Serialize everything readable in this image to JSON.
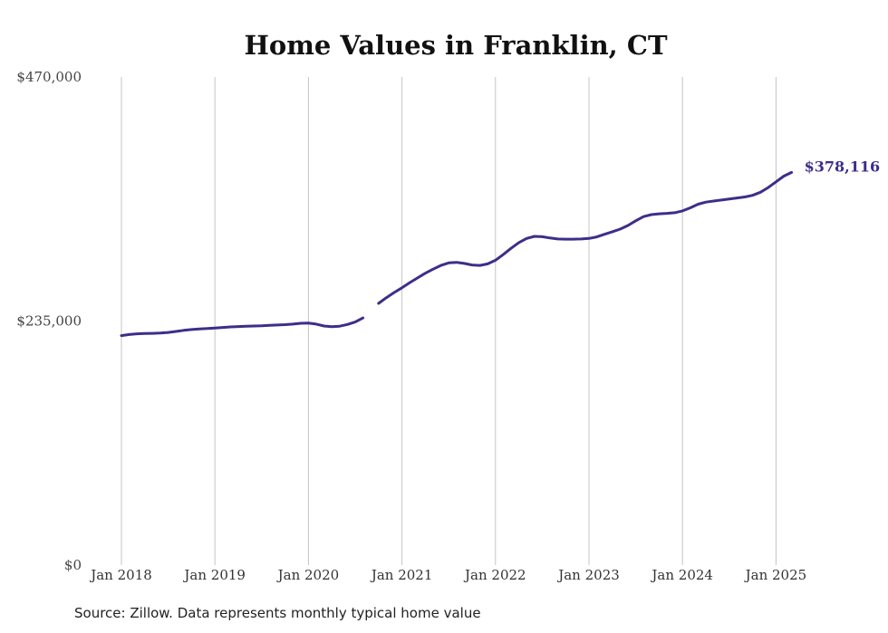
{
  "chart_data": {
    "type": "line",
    "title": "Home Values in Franklin, CT",
    "xlabel": "",
    "ylabel": "",
    "ylim": [
      0,
      470000
    ],
    "y_ticks": [
      "$0",
      "$235,000",
      "$470,000"
    ],
    "y_tick_values": [
      0,
      235000,
      470000
    ],
    "x_ticks": [
      "Jan 2018",
      "Jan 2019",
      "Jan 2020",
      "Jan 2021",
      "Jan 2022",
      "Jan 2023",
      "Jan 2024",
      "Jan 2025"
    ],
    "x_tick_dates": [
      "2018-01",
      "2019-01",
      "2020-01",
      "2021-01",
      "2022-01",
      "2023-01",
      "2024-01",
      "2025-01"
    ],
    "x_range": [
      "2018-01",
      "2025-03"
    ],
    "grid": "vertical",
    "color": "#3b2f8a",
    "end_label": "$378,116",
    "series": [
      {
        "segments": [
          [
            [
              "2018-01",
              221000
            ],
            [
              "2018-02",
              222000
            ],
            [
              "2018-03",
              222700
            ],
            [
              "2018-04",
              223000
            ],
            [
              "2018-05",
              223100
            ],
            [
              "2018-06",
              223400
            ],
            [
              "2018-07",
              224000
            ],
            [
              "2018-08",
              225000
            ],
            [
              "2018-09",
              226000
            ],
            [
              "2018-10",
              226800
            ],
            [
              "2018-11",
              227400
            ],
            [
              "2018-12",
              227800
            ],
            [
              "2019-01",
              228300
            ],
            [
              "2019-02",
              228800
            ],
            [
              "2019-03",
              229300
            ],
            [
              "2019-04",
              229700
            ],
            [
              "2019-05",
              230000
            ],
            [
              "2019-06",
              230200
            ],
            [
              "2019-07",
              230500
            ],
            [
              "2019-08",
              230900
            ],
            [
              "2019-09",
              231200
            ],
            [
              "2019-10",
              231500
            ],
            [
              "2019-11",
              232000
            ],
            [
              "2019-12",
              232800
            ],
            [
              "2020-01",
              233000
            ],
            [
              "2020-02",
              232000
            ],
            [
              "2020-03",
              230200
            ],
            [
              "2020-04",
              229500
            ],
            [
              "2020-05",
              230000
            ],
            [
              "2020-06",
              231700
            ],
            [
              "2020-07",
              234000
            ],
            [
              "2020-08",
              238000
            ]
          ],
          [
            [
              "2020-10",
              252000
            ],
            [
              "2020-11",
              257500
            ],
            [
              "2020-12",
              262500
            ],
            [
              "2021-01",
              267000
            ],
            [
              "2021-02",
              272000
            ],
            [
              "2021-03",
              276500
            ],
            [
              "2021-04",
              281000
            ],
            [
              "2021-05",
              285000
            ],
            [
              "2021-06",
              288500
            ],
            [
              "2021-07",
              291000
            ],
            [
              "2021-08",
              291500
            ],
            [
              "2021-09",
              290500
            ],
            [
              "2021-10",
              289000
            ],
            [
              "2021-11",
              288500
            ],
            [
              "2021-12",
              290000
            ],
            [
              "2022-01",
              293500
            ],
            [
              "2022-02",
              299000
            ],
            [
              "2022-03",
              305000
            ],
            [
              "2022-04",
              310500
            ],
            [
              "2022-05",
              314500
            ],
            [
              "2022-06",
              316500
            ],
            [
              "2022-07",
              316200
            ],
            [
              "2022-08",
              315000
            ],
            [
              "2022-09",
              314000
            ],
            [
              "2022-10",
              313800
            ],
            [
              "2022-11",
              313800
            ],
            [
              "2022-12",
              314000
            ],
            [
              "2023-01",
              314500
            ],
            [
              "2023-02",
              316000
            ],
            [
              "2023-03",
              318500
            ],
            [
              "2023-04",
              321000
            ],
            [
              "2023-05",
              323500
            ],
            [
              "2023-06",
              327000
            ],
            [
              "2023-07",
              331500
            ],
            [
              "2023-08",
              335500
            ],
            [
              "2023-09",
              337500
            ],
            [
              "2023-10",
              338200
            ],
            [
              "2023-11",
              338700
            ],
            [
              "2023-12",
              339300
            ],
            [
              "2024-01",
              341000
            ],
            [
              "2024-02",
              344000
            ],
            [
              "2024-03",
              347500
            ],
            [
              "2024-04",
              349500
            ],
            [
              "2024-05",
              350500
            ],
            [
              "2024-06",
              351500
            ],
            [
              "2024-07",
              352500
            ],
            [
              "2024-08",
              353500
            ],
            [
              "2024-09",
              354500
            ],
            [
              "2024-10",
              356000
            ],
            [
              "2024-11",
              359000
            ],
            [
              "2024-12",
              363500
            ],
            [
              "2025-01",
              369000
            ],
            [
              "2025-02",
              374500
            ],
            [
              "2025-03",
              378116
            ]
          ]
        ]
      }
    ]
  },
  "footer": {
    "source": "Source: Zillow. Data represents monthly typical home value"
  }
}
